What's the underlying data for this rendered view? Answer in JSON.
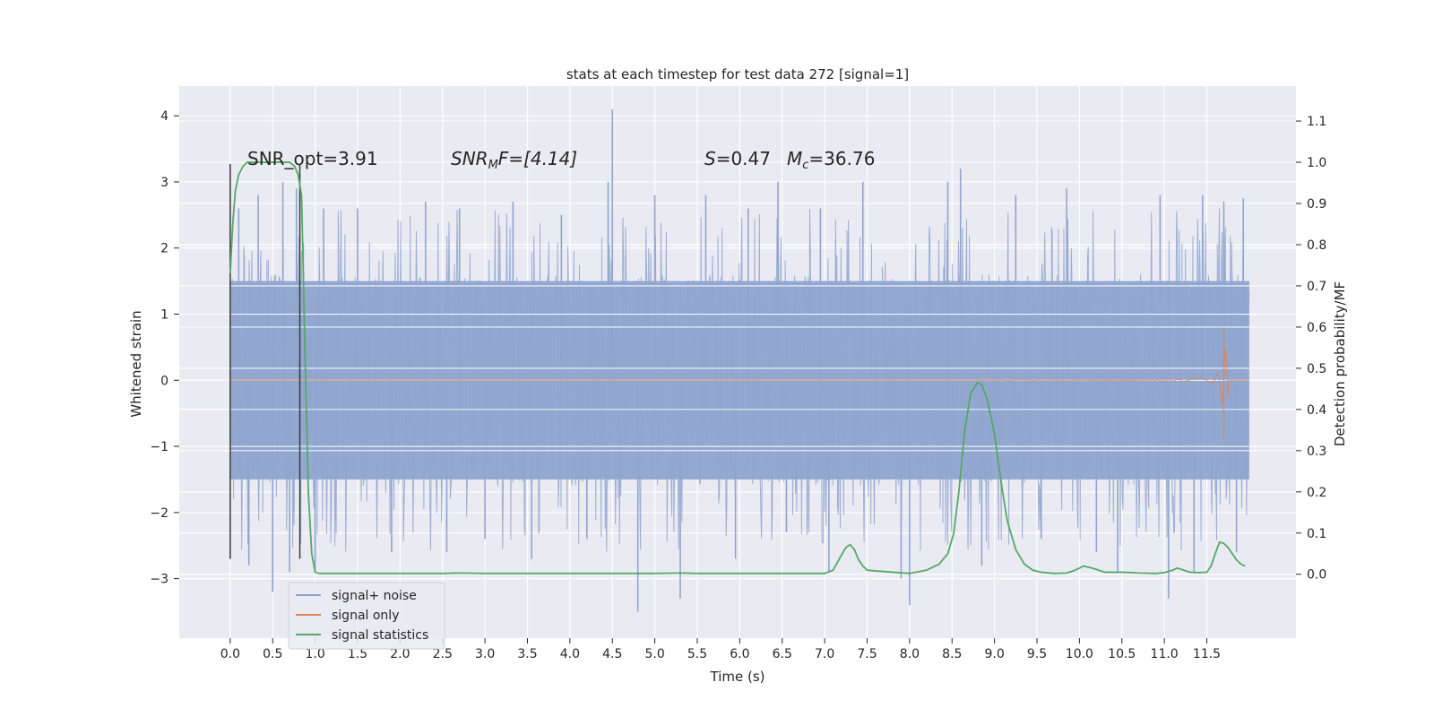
{
  "chart_data": {
    "type": "line",
    "title": "stats at each timestep for test data 272 [signal=1]",
    "xlabel": "Time (s)",
    "ylabel_left": "Whitened strain",
    "ylabel_right": "Detection probability/MF",
    "xlim": [
      -0.6,
      12.55
    ],
    "ylim_left": [
      -3.9,
      4.45
    ],
    "ylim_right": [
      -0.155,
      1.185
    ],
    "x_ticks": [
      "0.0",
      "0.5",
      "1.0",
      "1.5",
      "2.0",
      "2.5",
      "3.0",
      "3.5",
      "4.0",
      "4.5",
      "5.0",
      "5.5",
      "6.0",
      "6.5",
      "7.0",
      "7.5",
      "8.0",
      "8.5",
      "9.0",
      "9.5",
      "10.0",
      "10.5",
      "11.0",
      "11.5"
    ],
    "y_left_ticks": [
      "−3",
      "−2",
      "−1",
      "0",
      "1",
      "2",
      "3",
      "4"
    ],
    "y_left_tick_values": [
      -3,
      -2,
      -1,
      0,
      1,
      2,
      3,
      4
    ],
    "y_right_ticks": [
      "0.0",
      "0.1",
      "0.2",
      "0.3",
      "0.4",
      "0.5",
      "0.6",
      "0.7",
      "0.8",
      "0.9",
      "1.0",
      "1.1"
    ],
    "y_right_tick_values": [
      0,
      0.1,
      0.2,
      0.3,
      0.4,
      0.5,
      0.6,
      0.7,
      0.8,
      0.9,
      1.0,
      1.1
    ],
    "grid": true,
    "legend_position": "lower-left",
    "annotations": {
      "snr_opt": "SNR_opt=3.91",
      "snr_mf_label": "SNR",
      "snr_mf_sub": "M",
      "snr_mf_rest": "F=[4.14]",
      "s_label": "S",
      "s_value": "=0.47",
      "mc_label": "M",
      "mc_sub": "c",
      "mc_value": "=36.76"
    },
    "window_markers": [
      0.0,
      0.82
    ],
    "window_marker_range": [
      -2.7,
      3.27
    ],
    "series": [
      {
        "name": "signal+ noise",
        "axis": "left",
        "color": "#8fa5cf",
        "description_values": "dense whitened noise",
        "x_range": [
          0.0,
          12.0
        ],
        "core_band": [
          -1.5,
          1.5
        ],
        "spikes": [
          [
            0.1,
            2.6
          ],
          [
            0.22,
            -2.8
          ],
          [
            0.33,
            2.8
          ],
          [
            0.5,
            -3.2
          ],
          [
            0.62,
            3.0
          ],
          [
            0.7,
            -2.9
          ],
          [
            0.78,
            2.9
          ],
          [
            1.0,
            -2.9
          ],
          [
            1.1,
            2.6
          ],
          [
            1.5,
            2.6
          ],
          [
            1.9,
            -2.6
          ],
          [
            2.3,
            2.7
          ],
          [
            2.55,
            -2.6
          ],
          [
            2.7,
            2.6
          ],
          [
            3.0,
            -2.4
          ],
          [
            3.33,
            2.7
          ],
          [
            3.55,
            -2.7
          ],
          [
            3.9,
            2.5
          ],
          [
            4.2,
            -2.4
          ],
          [
            4.45,
            3.0
          ],
          [
            4.5,
            4.1
          ],
          [
            4.8,
            -3.5
          ],
          [
            5.0,
            2.8
          ],
          [
            5.3,
            -3.3
          ],
          [
            5.6,
            2.8
          ],
          [
            5.95,
            -2.7
          ],
          [
            6.1,
            2.6
          ],
          [
            6.45,
            3.0
          ],
          [
            6.55,
            -2.3
          ],
          [
            6.95,
            2.6
          ],
          [
            7.05,
            -2.9
          ],
          [
            7.45,
            3.0
          ],
          [
            7.9,
            -3.0
          ],
          [
            8.0,
            -3.4
          ],
          [
            8.45,
            3.0
          ],
          [
            8.6,
            3.2
          ],
          [
            8.85,
            -2.8
          ],
          [
            9.25,
            2.8
          ],
          [
            9.55,
            -2.4
          ],
          [
            9.85,
            2.9
          ],
          [
            10.2,
            -2.6
          ],
          [
            10.45,
            -2.9
          ],
          [
            10.95,
            2.8
          ],
          [
            11.05,
            -3.3
          ],
          [
            11.35,
            -2.9
          ],
          [
            11.45,
            2.8
          ],
          [
            11.7,
            2.7
          ],
          [
            11.85,
            -2.6
          ],
          [
            11.93,
            2.75
          ]
        ]
      },
      {
        "name": "signal only",
        "axis": "left",
        "color": "#dd8452",
        "description_values": "flat at 0, chirp near 11.7 s",
        "chirp_peak_time": 11.7,
        "chirp_peak_amplitude": 0.8,
        "chirp_min_amplitude": -0.9
      },
      {
        "name": "signal statistics",
        "axis": "right",
        "color": "#55a868",
        "x": [
          0.0,
          0.03,
          0.06,
          0.1,
          0.15,
          0.2,
          0.3,
          0.4,
          0.5,
          0.6,
          0.7,
          0.76,
          0.8,
          0.84,
          0.88,
          0.92,
          0.96,
          1.0,
          1.05,
          1.1,
          1.2,
          1.5,
          2.0,
          2.5,
          2.7,
          3.0,
          3.5,
          4.0,
          4.5,
          5.0,
          5.3,
          5.5,
          6.0,
          6.5,
          7.0,
          7.1,
          7.18,
          7.25,
          7.3,
          7.35,
          7.4,
          7.45,
          7.5,
          7.6,
          7.8,
          8.0,
          8.2,
          8.35,
          8.45,
          8.52,
          8.58,
          8.65,
          8.72,
          8.8,
          8.85,
          8.92,
          9.0,
          9.08,
          9.15,
          9.25,
          9.35,
          9.45,
          9.55,
          9.7,
          9.85,
          9.95,
          10.05,
          10.15,
          10.3,
          10.5,
          10.7,
          10.9,
          11.0,
          11.1,
          11.15,
          11.2,
          11.3,
          11.4,
          11.5,
          11.55,
          11.6,
          11.65,
          11.7,
          11.75,
          11.8,
          11.85,
          11.9,
          11.95
        ],
        "y": [
          0.73,
          0.85,
          0.93,
          0.97,
          0.99,
          1.0,
          1.0,
          1.0,
          1.0,
          1.0,
          1.0,
          0.99,
          0.97,
          0.92,
          0.55,
          0.2,
          0.05,
          0.005,
          0.002,
          0.002,
          0.002,
          0.002,
          0.002,
          0.002,
          0.003,
          0.002,
          0.002,
          0.002,
          0.002,
          0.002,
          0.003,
          0.002,
          0.002,
          0.002,
          0.002,
          0.01,
          0.04,
          0.065,
          0.072,
          0.06,
          0.035,
          0.02,
          0.01,
          0.008,
          0.005,
          0.002,
          0.01,
          0.025,
          0.05,
          0.1,
          0.2,
          0.35,
          0.44,
          0.465,
          0.46,
          0.42,
          0.34,
          0.22,
          0.13,
          0.06,
          0.025,
          0.01,
          0.005,
          0.002,
          0.003,
          0.01,
          0.02,
          0.015,
          0.005,
          0.005,
          0.003,
          0.002,
          0.004,
          0.01,
          0.015,
          0.012,
          0.005,
          0.004,
          0.005,
          0.02,
          0.05,
          0.078,
          0.075,
          0.065,
          0.05,
          0.035,
          0.025,
          0.02
        ]
      }
    ]
  }
}
